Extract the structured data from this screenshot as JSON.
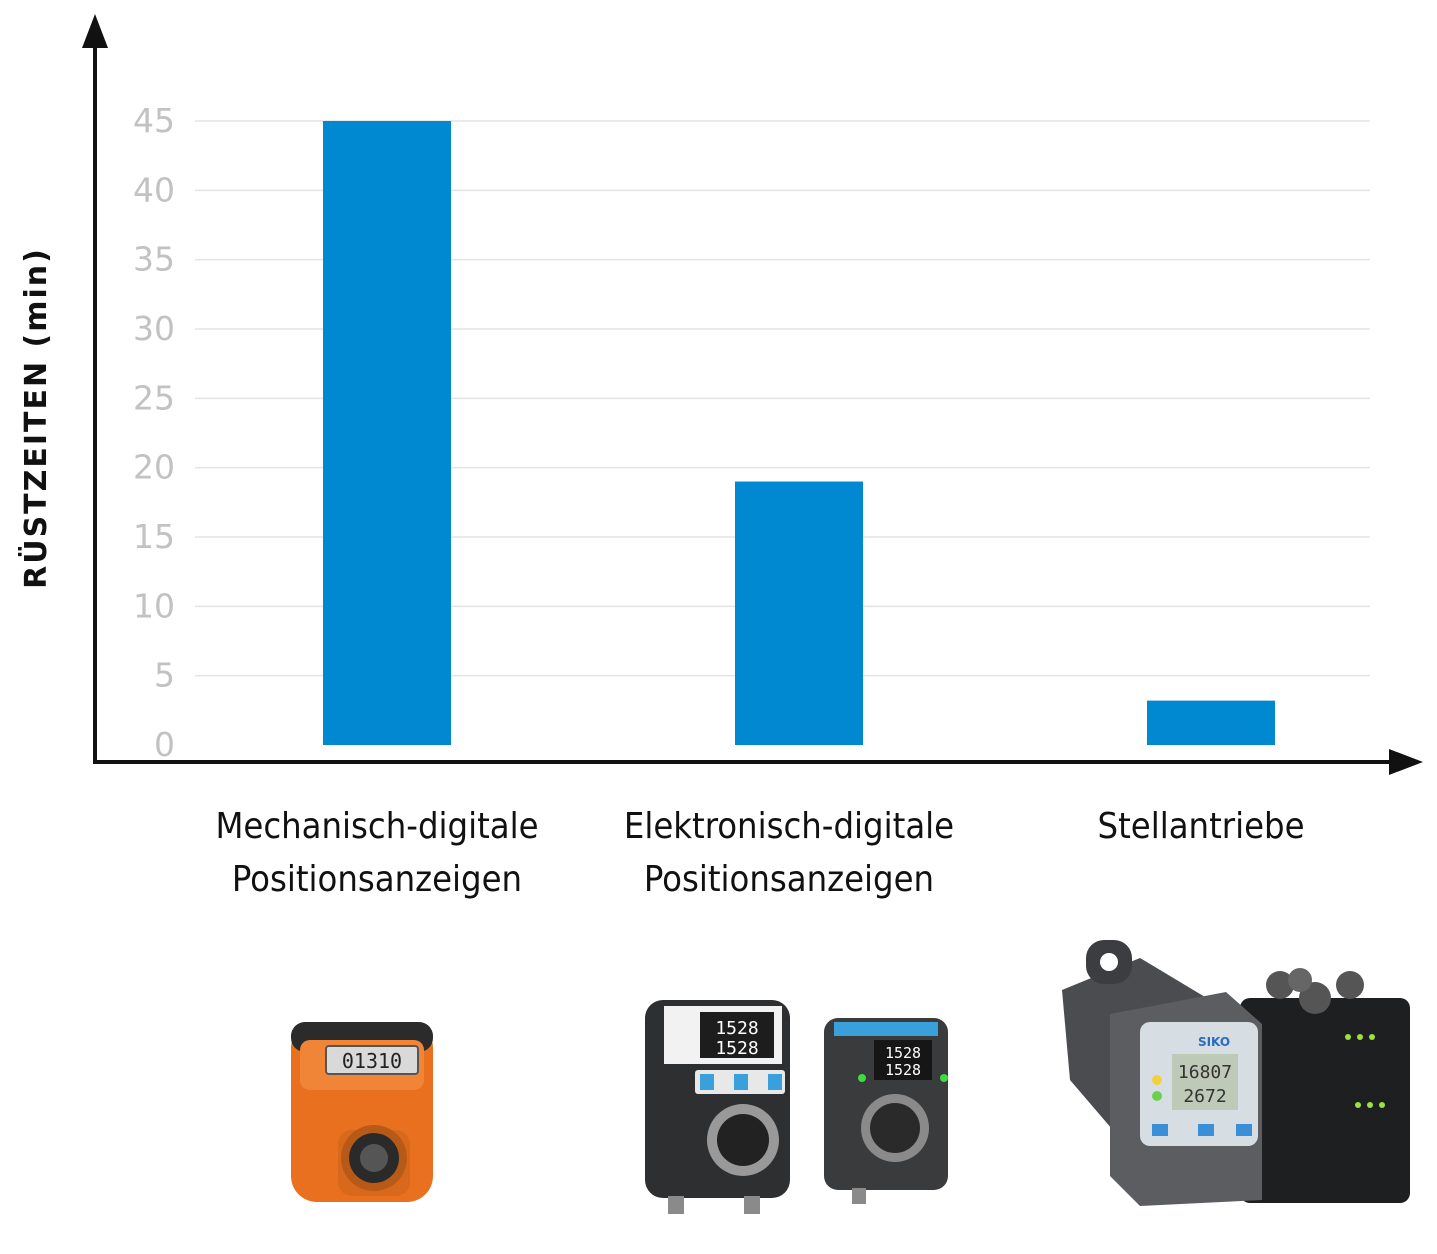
{
  "chart_data": {
    "type": "bar",
    "categories": [
      [
        "Mechanisch-digitale",
        "Positionsanzeigen"
      ],
      [
        "Elektronisch-digitale",
        "Positionsanzeigen"
      ],
      [
        "Stellantriebe"
      ]
    ],
    "values": [
      45,
      19,
      3.2
    ],
    "ylabel": "RÜSTZEITEN (min)",
    "xlabel": "",
    "ylim": [
      0,
      45
    ],
    "yticks": [
      "0",
      "5",
      "10",
      "15",
      "20",
      "25",
      "30",
      "35",
      "40",
      "45"
    ],
    "grid": true,
    "bar_color": "#0088d1"
  },
  "products": [
    {
      "name": "mechanical-position-indicator-photo",
      "display": "01310"
    },
    {
      "name": "electronic-position-indicators-photo",
      "display": [
        "1528",
        "1528"
      ]
    },
    {
      "name": "actuators-photo",
      "display": [
        "16807",
        "2672"
      ],
      "brand": "SIKO"
    }
  ]
}
